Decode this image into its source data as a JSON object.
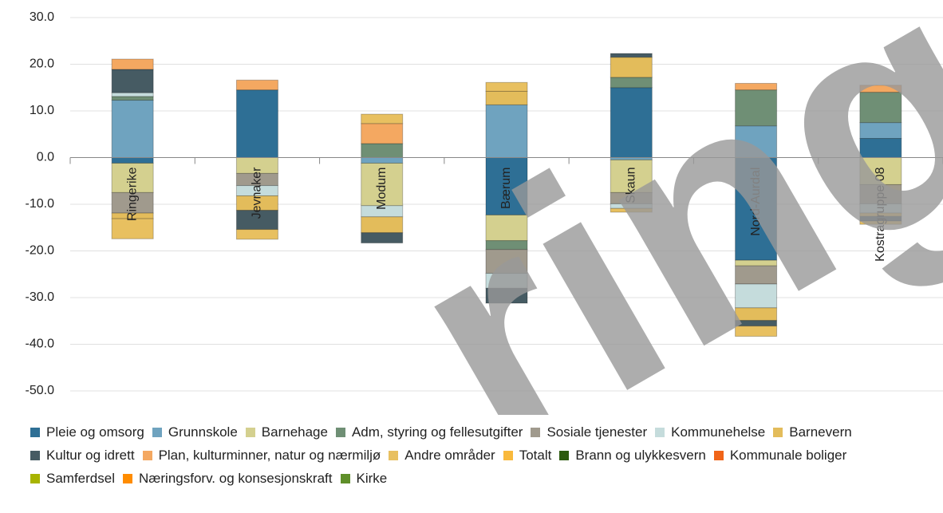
{
  "chart_data": {
    "type": "stacked_bar",
    "categories": [
      "Ringerike",
      "Jevnaker",
      "Modum",
      "Bærum",
      "Skaun",
      "Nord-Aurdal",
      "Kostragruppe 08"
    ],
    "series": [
      {
        "name": "Pleie og omsorg",
        "color": "#2e6f95",
        "values": [
          -1.2,
          14.5,
          null,
          -12.3,
          15.0,
          -22.0,
          4.1
        ]
      },
      {
        "name": "Grunnskole",
        "color": "#6fa3bf",
        "values": [
          12.3,
          null,
          -1.2,
          11.3,
          -0.5,
          6.8,
          3.4
        ]
      },
      {
        "name": "Barnehage",
        "color": "#d4d08f",
        "values": [
          -6.3,
          -3.4,
          -9.1,
          -5.5,
          -7.0,
          -1.2,
          -5.8
        ]
      },
      {
        "name": "Adm, styring og fellesutgifter",
        "color": "#6f8f75",
        "values": [
          0.8,
          null,
          3.0,
          -1.9,
          2.2,
          7.7,
          6.5
        ]
      },
      {
        "name": "Sosiale tjenester",
        "color": "#a09a8d",
        "values": [
          -4.4,
          -2.6,
          null,
          -5.1,
          -2.4,
          -3.9,
          -4.1
        ]
      },
      {
        "name": "Kommunehelse",
        "color": "#c5dcdc",
        "values": [
          0.8,
          -2.2,
          -2.4,
          -3.2,
          -1.0,
          -5.1,
          -2.0
        ]
      },
      {
        "name": "Barnevern",
        "color": "#e3bc5b",
        "values": [
          -1.2,
          -3.1,
          -3.4,
          2.9,
          4.3,
          -2.7,
          -0.7
        ]
      },
      {
        "name": "Kultur og idrett",
        "color": "#465b63",
        "values": [
          5.0,
          -4.1,
          -2.2,
          -3.2,
          0.8,
          -1.2,
          -1.0
        ]
      },
      {
        "name": "Plan, kulturminner, natur og nærmiljø",
        "color": "#f4a861",
        "values": [
          2.2,
          2.1,
          4.3,
          null,
          null,
          1.4,
          1.5
        ]
      },
      {
        "name": "Andre områder",
        "color": "#e8c060",
        "values": [
          -4.3,
          -2.1,
          2.0,
          1.9,
          -0.8,
          -2.2,
          -0.7
        ]
      },
      {
        "name": "Totalt",
        "color": "#f9b93c",
        "values": [
          null,
          null,
          null,
          null,
          null,
          null,
          null
        ]
      },
      {
        "name": "Brann og ulykkesvern",
        "color": "#2d5a0e",
        "values": [
          null,
          null,
          null,
          null,
          null,
          null,
          null
        ]
      },
      {
        "name": "Kommunale boliger",
        "color": "#f06418",
        "values": [
          null,
          null,
          null,
          null,
          null,
          null,
          null
        ]
      },
      {
        "name": "Samferdsel",
        "color": "#a8b400",
        "values": [
          null,
          null,
          null,
          null,
          null,
          null,
          null
        ]
      },
      {
        "name": "Næringsforv. og konsesjonskraft",
        "color": "#ff8c00",
        "values": [
          null,
          null,
          null,
          null,
          null,
          null,
          null
        ]
      },
      {
        "name": "Kirke",
        "color": "#5f8f2a",
        "values": [
          null,
          null,
          null,
          null,
          null,
          null,
          null
        ]
      }
    ],
    "ylim": [
      -50,
      30
    ],
    "yticks": [
      {
        "value": -50,
        "label": "-50.0"
      },
      {
        "value": -40,
        "label": "-40.0"
      },
      {
        "value": -30,
        "label": "-30.0"
      },
      {
        "value": -20,
        "label": "-20.0"
      },
      {
        "value": -10,
        "label": "-10.0"
      },
      {
        "value": 0,
        "label": "0.0"
      },
      {
        "value": 10,
        "label": "10.0"
      },
      {
        "value": 20,
        "label": "20.0"
      },
      {
        "value": 30,
        "label": "30.0"
      }
    ],
    "grid": true,
    "legend": "bottom",
    "watermark": "ring"
  }
}
